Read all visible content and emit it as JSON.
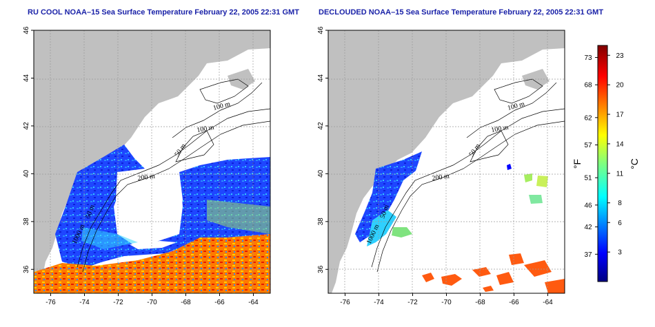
{
  "chart_data": [
    {
      "type": "heatmap",
      "title": "RU COOL NOAA–15 Sea Surface Temperature February 22, 2005 22:31 GMT",
      "x_ticks": [
        "-76",
        "-74",
        "-72",
        "-70",
        "-68",
        "-66",
        "-64"
      ],
      "y_ticks": [
        "36",
        "38",
        "40",
        "42",
        "44",
        "46"
      ],
      "xlim": [
        -77,
        -63
      ],
      "ylim": [
        35,
        46
      ],
      "grid": true,
      "contour_labels": [
        "100 m",
        "100 m",
        "50 m",
        "200 m",
        "50 m",
        "1000 m"
      ]
    },
    {
      "type": "heatmap",
      "title": "DECLOUDED NOAA–15 Sea Surface Temperature February 22, 2005 22:31 GMT",
      "x_ticks": [
        "-76",
        "-74",
        "-72",
        "-70",
        "-68",
        "-66",
        "-64"
      ],
      "y_ticks": [
        "36",
        "38",
        "40",
        "42",
        "44",
        "46"
      ],
      "xlim": [
        -77,
        -63
      ],
      "ylim": [
        35,
        46
      ],
      "grid": true,
      "contour_labels": [
        "100 m",
        "100 m",
        "50 m",
        "200 m",
        "50 m",
        "1000 m"
      ]
    }
  ],
  "colorbar": {
    "fahrenheit_label": "°F",
    "celsius_label": "°C",
    "fahrenheit_ticks": [
      "73",
      "68",
      "62",
      "57",
      "51",
      "46",
      "42",
      "37"
    ],
    "celsius_ticks": [
      "23",
      "20",
      "17",
      "14",
      "11",
      "8",
      "6",
      "3"
    ],
    "range_celsius": [
      0,
      24
    ]
  },
  "colors": {
    "land": "#c0c0c0",
    "title": "#1a22a8"
  }
}
